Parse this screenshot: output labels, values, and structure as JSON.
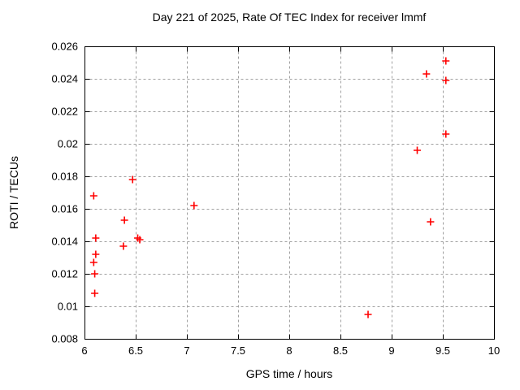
{
  "window": {
    "background_color": "#ffffff",
    "text_color": "#000000"
  },
  "chart_data": {
    "type": "scatter",
    "title": "Day 221 of 2025, Rate Of TEC Index for receiver lmmf",
    "xlabel": "GPS time / hours",
    "ylabel": "ROTI / TECUs",
    "xlim": [
      6,
      10
    ],
    "ylim": [
      0.008,
      0.026
    ],
    "x_ticks": [
      6,
      6.5,
      7,
      7.5,
      8,
      8.5,
      9,
      9.5,
      10
    ],
    "x_tick_labels": [
      "6",
      "6.5",
      "7",
      "7.5",
      "8",
      "8.5",
      "9",
      "9.5",
      "10"
    ],
    "y_ticks": [
      0.008,
      0.01,
      0.012,
      0.014,
      0.016,
      0.018,
      0.02,
      0.022,
      0.024,
      0.026
    ],
    "y_tick_labels": [
      "0.008",
      "0.01",
      "0.012",
      "0.014",
      "0.016",
      "0.018",
      "0.02",
      "0.022",
      "0.024",
      "0.026"
    ],
    "grid": true,
    "grid_style": "dashed",
    "legend_position": "none",
    "marker_shape": "plus",
    "marker_color": "#ff0000",
    "grid_color": "#a0a0a0",
    "axis_color": "#000000",
    "series": [
      {
        "name": "ROTI",
        "points": [
          [
            6.09,
            0.0168
          ],
          [
            6.11,
            0.0142
          ],
          [
            6.11,
            0.0132
          ],
          [
            6.09,
            0.0127
          ],
          [
            6.1,
            0.012
          ],
          [
            6.1,
            0.0108
          ],
          [
            6.39,
            0.0153
          ],
          [
            6.38,
            0.0137
          ],
          [
            6.47,
            0.0178
          ],
          [
            6.52,
            0.0142
          ],
          [
            6.54,
            0.0141
          ],
          [
            7.07,
            0.0162
          ],
          [
            8.77,
            0.0095
          ],
          [
            9.25,
            0.0196
          ],
          [
            9.34,
            0.0243
          ],
          [
            9.38,
            0.0152
          ],
          [
            9.53,
            0.0251
          ],
          [
            9.53,
            0.0239
          ],
          [
            9.53,
            0.0206
          ]
        ]
      }
    ]
  }
}
